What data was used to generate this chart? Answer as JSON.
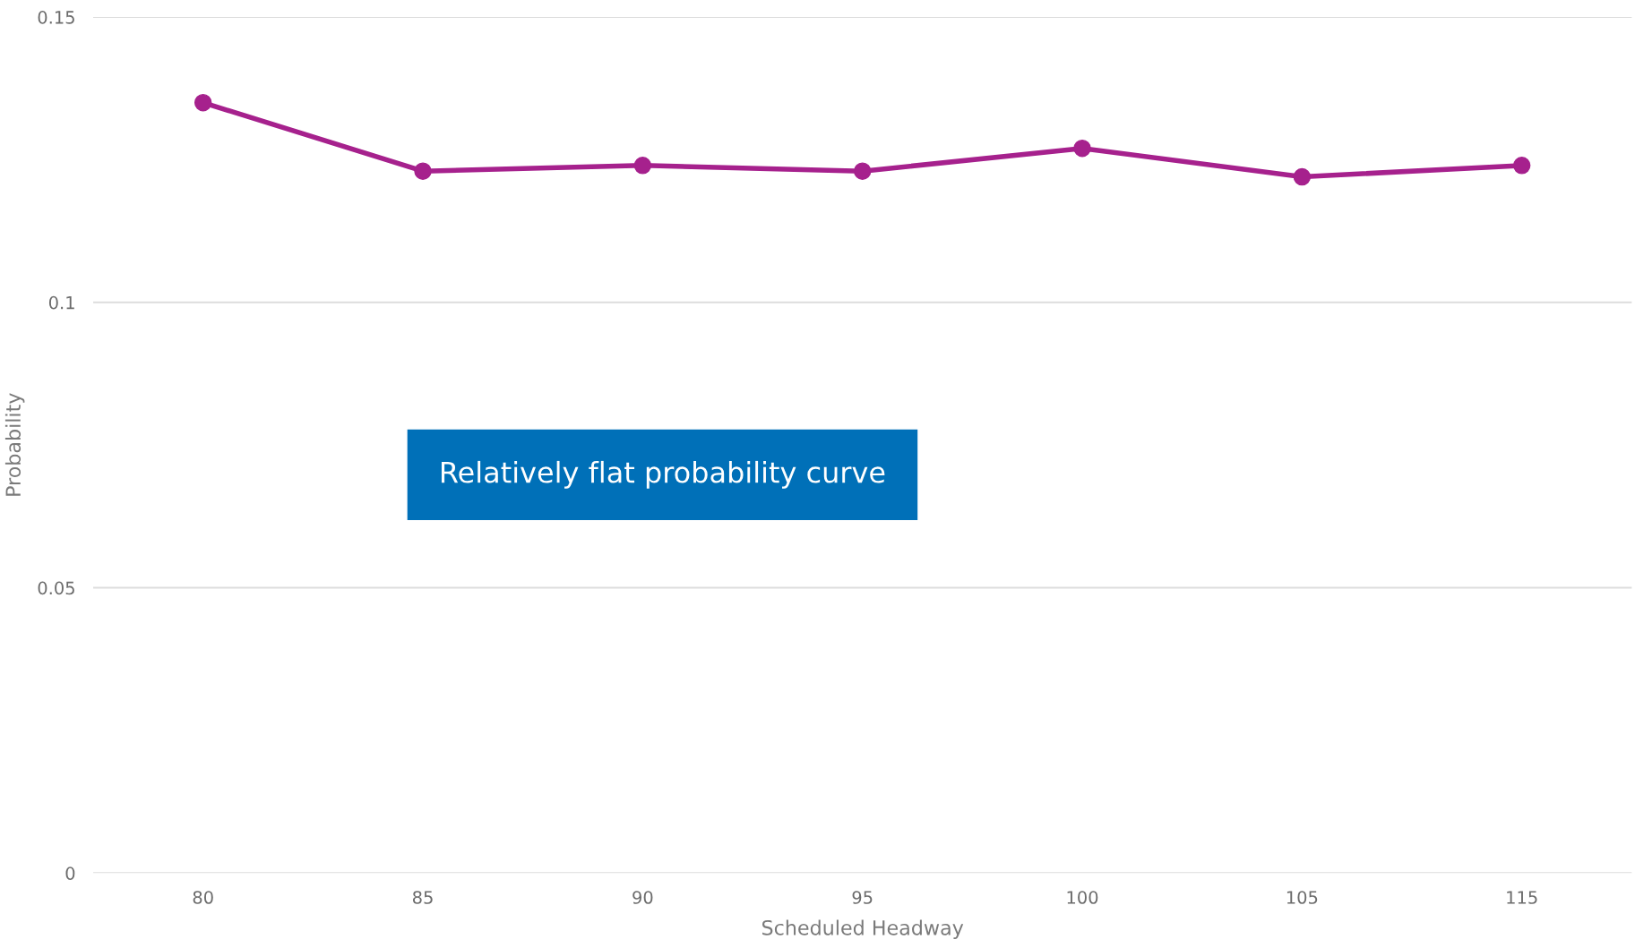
{
  "chart_data": {
    "type": "line",
    "xlabel": "Scheduled Headway",
    "ylabel": "Probability",
    "categories": [
      "80",
      "85",
      "90",
      "95",
      "100",
      "105",
      "115"
    ],
    "series": [
      {
        "color": "#a6218d",
        "values": [
          0.135,
          0.123,
          0.124,
          0.123,
          0.127,
          0.122,
          0.124
        ]
      }
    ],
    "ylim": [
      0,
      0.15
    ],
    "yticks": [
      0,
      0.05,
      0.1,
      0.15
    ],
    "grid": "y",
    "marker": "circle",
    "line_style": "solid",
    "annotations": [
      "Relatively flat probability curve"
    ]
  }
}
